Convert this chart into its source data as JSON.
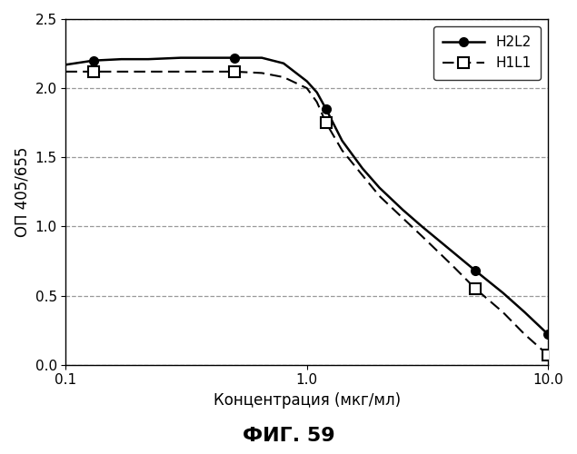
{
  "h2l2_x": [
    0.1,
    0.13,
    0.17,
    0.22,
    0.3,
    0.4,
    0.5,
    0.65,
    0.8,
    1.0,
    1.1,
    1.2,
    1.4,
    1.7,
    2.0,
    2.5,
    3.0,
    4.0,
    5.0,
    6.5,
    8.0,
    10.0
  ],
  "h2l2_y": [
    2.17,
    2.2,
    2.21,
    2.21,
    2.22,
    2.22,
    2.22,
    2.22,
    2.18,
    2.05,
    1.97,
    1.85,
    1.62,
    1.42,
    1.28,
    1.12,
    1.0,
    0.82,
    0.68,
    0.52,
    0.38,
    0.22
  ],
  "h1l1_x": [
    0.1,
    0.13,
    0.17,
    0.22,
    0.3,
    0.4,
    0.5,
    0.65,
    0.8,
    1.0,
    1.1,
    1.2,
    1.4,
    1.7,
    2.0,
    2.5,
    3.0,
    4.0,
    5.0,
    6.5,
    8.0,
    10.0
  ],
  "h1l1_y": [
    2.12,
    2.12,
    2.12,
    2.12,
    2.12,
    2.12,
    2.12,
    2.11,
    2.08,
    2.0,
    1.9,
    1.75,
    1.55,
    1.37,
    1.22,
    1.06,
    0.93,
    0.72,
    0.55,
    0.38,
    0.22,
    0.07
  ],
  "h2l2_marker_x": [
    0.13,
    0.5,
    1.2,
    5.0,
    10.0
  ],
  "h2l2_marker_y": [
    2.2,
    2.22,
    1.85,
    0.68,
    0.22
  ],
  "h1l1_marker_x": [
    0.13,
    0.5,
    1.2,
    5.0,
    10.0
  ],
  "h1l1_marker_y": [
    2.12,
    2.12,
    1.75,
    0.55,
    0.07
  ],
  "xlim": [
    0.1,
    10.0
  ],
  "ylim": [
    0,
    2.5
  ],
  "yticks": [
    0,
    0.5,
    1.0,
    1.5,
    2.0,
    2.5
  ],
  "xticks": [
    0.1,
    1.0,
    10.0
  ],
  "xtick_labels": [
    "0.1",
    "1.0",
    "10.0"
  ],
  "xlabel": "Концентрация (мкг/мл)",
  "ylabel": "ОП 405/655",
  "title": "ФИГ. 59",
  "legend_h2l2": "H2L2",
  "legend_h1l1": "H1L1",
  "line_color": "black",
  "background_color": "white",
  "grid_color": "#999999"
}
